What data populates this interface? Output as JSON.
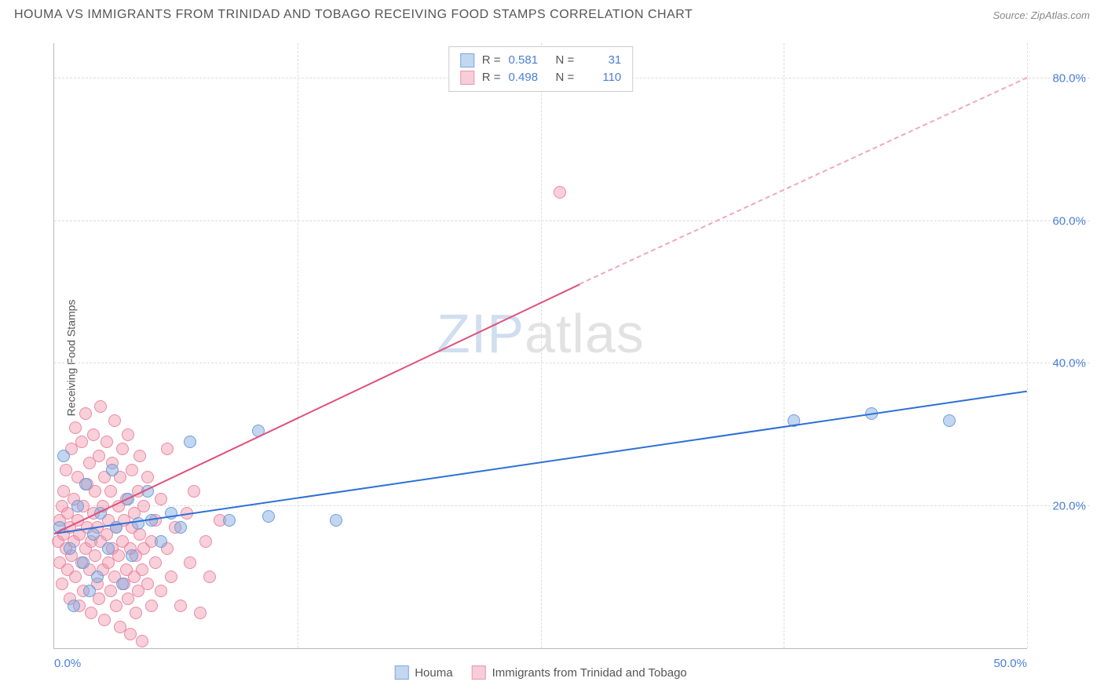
{
  "header": {
    "title": "HOUMA VS IMMIGRANTS FROM TRINIDAD AND TOBAGO RECEIVING FOOD STAMPS CORRELATION CHART",
    "source_label": "Source: ",
    "source_value": "ZipAtlas.com"
  },
  "axes": {
    "y_label": "Receiving Food Stamps",
    "x_min": 0.0,
    "x_max": 50.0,
    "y_min": 0.0,
    "y_max": 85.0,
    "x_ticks": [
      {
        "v": 0.0,
        "label": "0.0%"
      },
      {
        "v": 50.0,
        "label": "50.0%"
      }
    ],
    "y_ticks": [
      {
        "v": 20.0,
        "label": "20.0%"
      },
      {
        "v": 40.0,
        "label": "40.0%"
      },
      {
        "v": 60.0,
        "label": "60.0%"
      },
      {
        "v": 80.0,
        "label": "80.0%"
      }
    ],
    "x_grid": [
      12.5,
      25.0,
      37.5,
      50.0
    ],
    "grid_color": "#dddddd",
    "axis_color": "#bbbbbb",
    "tick_label_color": "#4a7fd8"
  },
  "series": {
    "a": {
      "name": "Houma",
      "color_fill": "rgba(120,165,225,0.45)",
      "color_stroke": "#6f9fd8",
      "swatch_fill": "#c3d7f0",
      "swatch_border": "#7aa8dd",
      "R_label": "R =",
      "R": "0.581",
      "N_label": "N =",
      "N": "31",
      "marker_radius": 8,
      "trend": {
        "x1": 0.0,
        "y1": 16.0,
        "x2": 50.0,
        "y2": 36.0,
        "color": "#2e6fd6",
        "width": 2
      },
      "points": [
        {
          "x": 0.3,
          "y": 17.0
        },
        {
          "x": 0.5,
          "y": 27.0
        },
        {
          "x": 0.8,
          "y": 14.0
        },
        {
          "x": 1.0,
          "y": 6.0
        },
        {
          "x": 1.2,
          "y": 20.0
        },
        {
          "x": 1.5,
          "y": 12.0
        },
        {
          "x": 1.6,
          "y": 23.0
        },
        {
          "x": 1.8,
          "y": 8.0
        },
        {
          "x": 2.0,
          "y": 16.0
        },
        {
          "x": 2.2,
          "y": 10.0
        },
        {
          "x": 2.4,
          "y": 19.0
        },
        {
          "x": 2.8,
          "y": 14.0
        },
        {
          "x": 3.0,
          "y": 25.0
        },
        {
          "x": 3.2,
          "y": 17.0
        },
        {
          "x": 3.5,
          "y": 9.0
        },
        {
          "x": 3.8,
          "y": 21.0
        },
        {
          "x": 4.0,
          "y": 13.0
        },
        {
          "x": 4.3,
          "y": 17.5
        },
        {
          "x": 4.8,
          "y": 22.0
        },
        {
          "x": 5.0,
          "y": 18.0
        },
        {
          "x": 5.5,
          "y": 15.0
        },
        {
          "x": 6.0,
          "y": 19.0
        },
        {
          "x": 6.5,
          "y": 17.0
        },
        {
          "x": 7.0,
          "y": 29.0
        },
        {
          "x": 9.0,
          "y": 18.0
        },
        {
          "x": 10.5,
          "y": 30.5
        },
        {
          "x": 11.0,
          "y": 18.5
        },
        {
          "x": 14.5,
          "y": 18.0
        },
        {
          "x": 38.0,
          "y": 32.0
        },
        {
          "x": 42.0,
          "y": 33.0
        },
        {
          "x": 46.0,
          "y": 32.0
        }
      ]
    },
    "b": {
      "name": "Immigrants from Trinidad and Tobago",
      "color_fill": "rgba(240,140,165,0.42)",
      "color_stroke": "#e88aa4",
      "swatch_fill": "#f6cdd8",
      "swatch_border": "#e997ae",
      "R_label": "R =",
      "R": "0.498",
      "N_label": "N =",
      "N": "110",
      "marker_radius": 8,
      "trend_solid": {
        "x1": 0.0,
        "y1": 16.0,
        "x2": 27.0,
        "y2": 51.0,
        "color": "#e0507a",
        "width": 2
      },
      "trend_dash": {
        "x1": 27.0,
        "y1": 51.0,
        "x2": 50.0,
        "y2": 80.0,
        "color": "#f0a8bc",
        "width": 2
      },
      "points": [
        {
          "x": 0.2,
          "y": 15
        },
        {
          "x": 0.3,
          "y": 18
        },
        {
          "x": 0.3,
          "y": 12
        },
        {
          "x": 0.4,
          "y": 20
        },
        {
          "x": 0.4,
          "y": 9
        },
        {
          "x": 0.5,
          "y": 16
        },
        {
          "x": 0.5,
          "y": 22
        },
        {
          "x": 0.6,
          "y": 14
        },
        {
          "x": 0.6,
          "y": 25
        },
        {
          "x": 0.7,
          "y": 11
        },
        {
          "x": 0.7,
          "y": 19
        },
        {
          "x": 0.8,
          "y": 7
        },
        {
          "x": 0.8,
          "y": 17
        },
        {
          "x": 0.9,
          "y": 28
        },
        {
          "x": 0.9,
          "y": 13
        },
        {
          "x": 1.0,
          "y": 21
        },
        {
          "x": 1.0,
          "y": 15
        },
        {
          "x": 1.1,
          "y": 31
        },
        {
          "x": 1.1,
          "y": 10
        },
        {
          "x": 1.2,
          "y": 18
        },
        {
          "x": 1.2,
          "y": 24
        },
        {
          "x": 1.3,
          "y": 6
        },
        {
          "x": 1.3,
          "y": 16
        },
        {
          "x": 1.4,
          "y": 29
        },
        {
          "x": 1.4,
          "y": 12
        },
        {
          "x": 1.5,
          "y": 20
        },
        {
          "x": 1.5,
          "y": 8
        },
        {
          "x": 1.6,
          "y": 33
        },
        {
          "x": 1.6,
          "y": 14
        },
        {
          "x": 1.7,
          "y": 17
        },
        {
          "x": 1.7,
          "y": 23
        },
        {
          "x": 1.8,
          "y": 11
        },
        {
          "x": 1.8,
          "y": 26
        },
        {
          "x": 1.9,
          "y": 15
        },
        {
          "x": 1.9,
          "y": 5
        },
        {
          "x": 2.0,
          "y": 19
        },
        {
          "x": 2.0,
          "y": 30
        },
        {
          "x": 2.1,
          "y": 13
        },
        {
          "x": 2.1,
          "y": 22
        },
        {
          "x": 2.2,
          "y": 9
        },
        {
          "x": 2.2,
          "y": 17
        },
        {
          "x": 2.3,
          "y": 27
        },
        {
          "x": 2.3,
          "y": 7
        },
        {
          "x": 2.4,
          "y": 15
        },
        {
          "x": 2.4,
          "y": 34
        },
        {
          "x": 2.5,
          "y": 11
        },
        {
          "x": 2.5,
          "y": 20
        },
        {
          "x": 2.6,
          "y": 24
        },
        {
          "x": 2.6,
          "y": 4
        },
        {
          "x": 2.7,
          "y": 16
        },
        {
          "x": 2.7,
          "y": 29
        },
        {
          "x": 2.8,
          "y": 12
        },
        {
          "x": 2.8,
          "y": 18
        },
        {
          "x": 2.9,
          "y": 8
        },
        {
          "x": 2.9,
          "y": 22
        },
        {
          "x": 3.0,
          "y": 14
        },
        {
          "x": 3.0,
          "y": 26
        },
        {
          "x": 3.1,
          "y": 10
        },
        {
          "x": 3.1,
          "y": 32
        },
        {
          "x": 3.2,
          "y": 17
        },
        {
          "x": 3.2,
          "y": 6
        },
        {
          "x": 3.3,
          "y": 20
        },
        {
          "x": 3.3,
          "y": 13
        },
        {
          "x": 3.4,
          "y": 24
        },
        {
          "x": 3.4,
          "y": 3
        },
        {
          "x": 3.5,
          "y": 15
        },
        {
          "x": 3.5,
          "y": 28
        },
        {
          "x": 3.6,
          "y": 9
        },
        {
          "x": 3.6,
          "y": 18
        },
        {
          "x": 3.7,
          "y": 11
        },
        {
          "x": 3.7,
          "y": 21
        },
        {
          "x": 3.8,
          "y": 7
        },
        {
          "x": 3.8,
          "y": 30
        },
        {
          "x": 3.9,
          "y": 14
        },
        {
          "x": 3.9,
          "y": 2
        },
        {
          "x": 4.0,
          "y": 17
        },
        {
          "x": 4.0,
          "y": 25
        },
        {
          "x": 4.1,
          "y": 10
        },
        {
          "x": 4.1,
          "y": 19
        },
        {
          "x": 4.2,
          "y": 5
        },
        {
          "x": 4.2,
          "y": 13
        },
        {
          "x": 4.3,
          "y": 22
        },
        {
          "x": 4.3,
          "y": 8
        },
        {
          "x": 4.4,
          "y": 16
        },
        {
          "x": 4.4,
          "y": 27
        },
        {
          "x": 4.5,
          "y": 11
        },
        {
          "x": 4.5,
          "y": 1
        },
        {
          "x": 4.6,
          "y": 20
        },
        {
          "x": 4.6,
          "y": 14
        },
        {
          "x": 4.8,
          "y": 9
        },
        {
          "x": 4.8,
          "y": 24
        },
        {
          "x": 5.0,
          "y": 15
        },
        {
          "x": 5.0,
          "y": 6
        },
        {
          "x": 5.2,
          "y": 18
        },
        {
          "x": 5.2,
          "y": 12
        },
        {
          "x": 5.5,
          "y": 21
        },
        {
          "x": 5.5,
          "y": 8
        },
        {
          "x": 5.8,
          "y": 28
        },
        {
          "x": 5.8,
          "y": 14
        },
        {
          "x": 6.0,
          "y": 10
        },
        {
          "x": 6.2,
          "y": 17
        },
        {
          "x": 6.5,
          "y": 6
        },
        {
          "x": 6.8,
          "y": 19
        },
        {
          "x": 7.0,
          "y": 12
        },
        {
          "x": 7.2,
          "y": 22
        },
        {
          "x": 7.5,
          "y": 5
        },
        {
          "x": 7.8,
          "y": 15
        },
        {
          "x": 8.0,
          "y": 10
        },
        {
          "x": 8.5,
          "y": 18
        },
        {
          "x": 26.0,
          "y": 64.0
        }
      ]
    }
  },
  "legend_top": {
    "border": "#cccccc"
  },
  "watermark": {
    "a": "ZIP",
    "b": "atlas"
  }
}
